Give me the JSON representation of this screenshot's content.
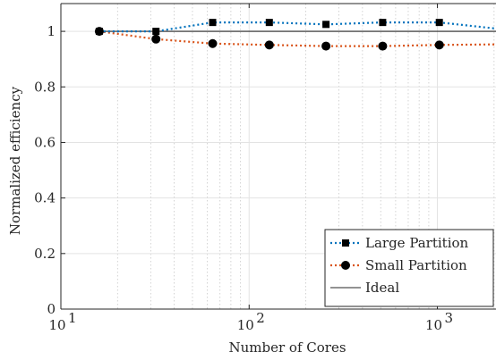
{
  "chart_data": {
    "type": "line",
    "title": "",
    "xlabel": "Number of Cores",
    "ylabel": "Normalized efficiency",
    "xscale": "log",
    "xlim": [
      10,
      2048
    ],
    "ylim": [
      0,
      1.1
    ],
    "grid": true,
    "x_ticks": [
      {
        "value": 10,
        "base": "10",
        "exp": "1"
      },
      {
        "value": 100,
        "base": "10",
        "exp": "2"
      },
      {
        "value": 1000,
        "base": "10",
        "exp": "3"
      }
    ],
    "y_ticks": [
      {
        "value": 0,
        "label": "0"
      },
      {
        "value": 0.2,
        "label": "0.2"
      },
      {
        "value": 0.4,
        "label": "0.4"
      },
      {
        "value": 0.6,
        "label": "0.6"
      },
      {
        "value": 0.8,
        "label": "0.8"
      },
      {
        "value": 1,
        "label": "1"
      }
    ],
    "legend_position": "bottom-right",
    "series": [
      {
        "name": "Large Partition",
        "color": "#0072BD",
        "line_style": "dotted",
        "marker": "square",
        "x": [
          16,
          32,
          64,
          128,
          256,
          512,
          1024,
          2048
        ],
        "y": [
          1.0,
          1.0,
          1.032,
          1.032,
          1.025,
          1.032,
          1.032,
          1.01
        ]
      },
      {
        "name": "Small Partition",
        "color": "#D95319",
        "line_style": "dotted",
        "marker": "circle",
        "x": [
          16,
          32,
          64,
          128,
          256,
          512,
          1024,
          2048
        ],
        "y": [
          1.0,
          0.972,
          0.956,
          0.951,
          0.947,
          0.947,
          0.951,
          0.953
        ]
      },
      {
        "name": "Ideal",
        "color": "#262626",
        "line_style": "solid",
        "marker": "none",
        "x": [
          16,
          2048
        ],
        "y": [
          1.0,
          1.0
        ]
      }
    ]
  }
}
